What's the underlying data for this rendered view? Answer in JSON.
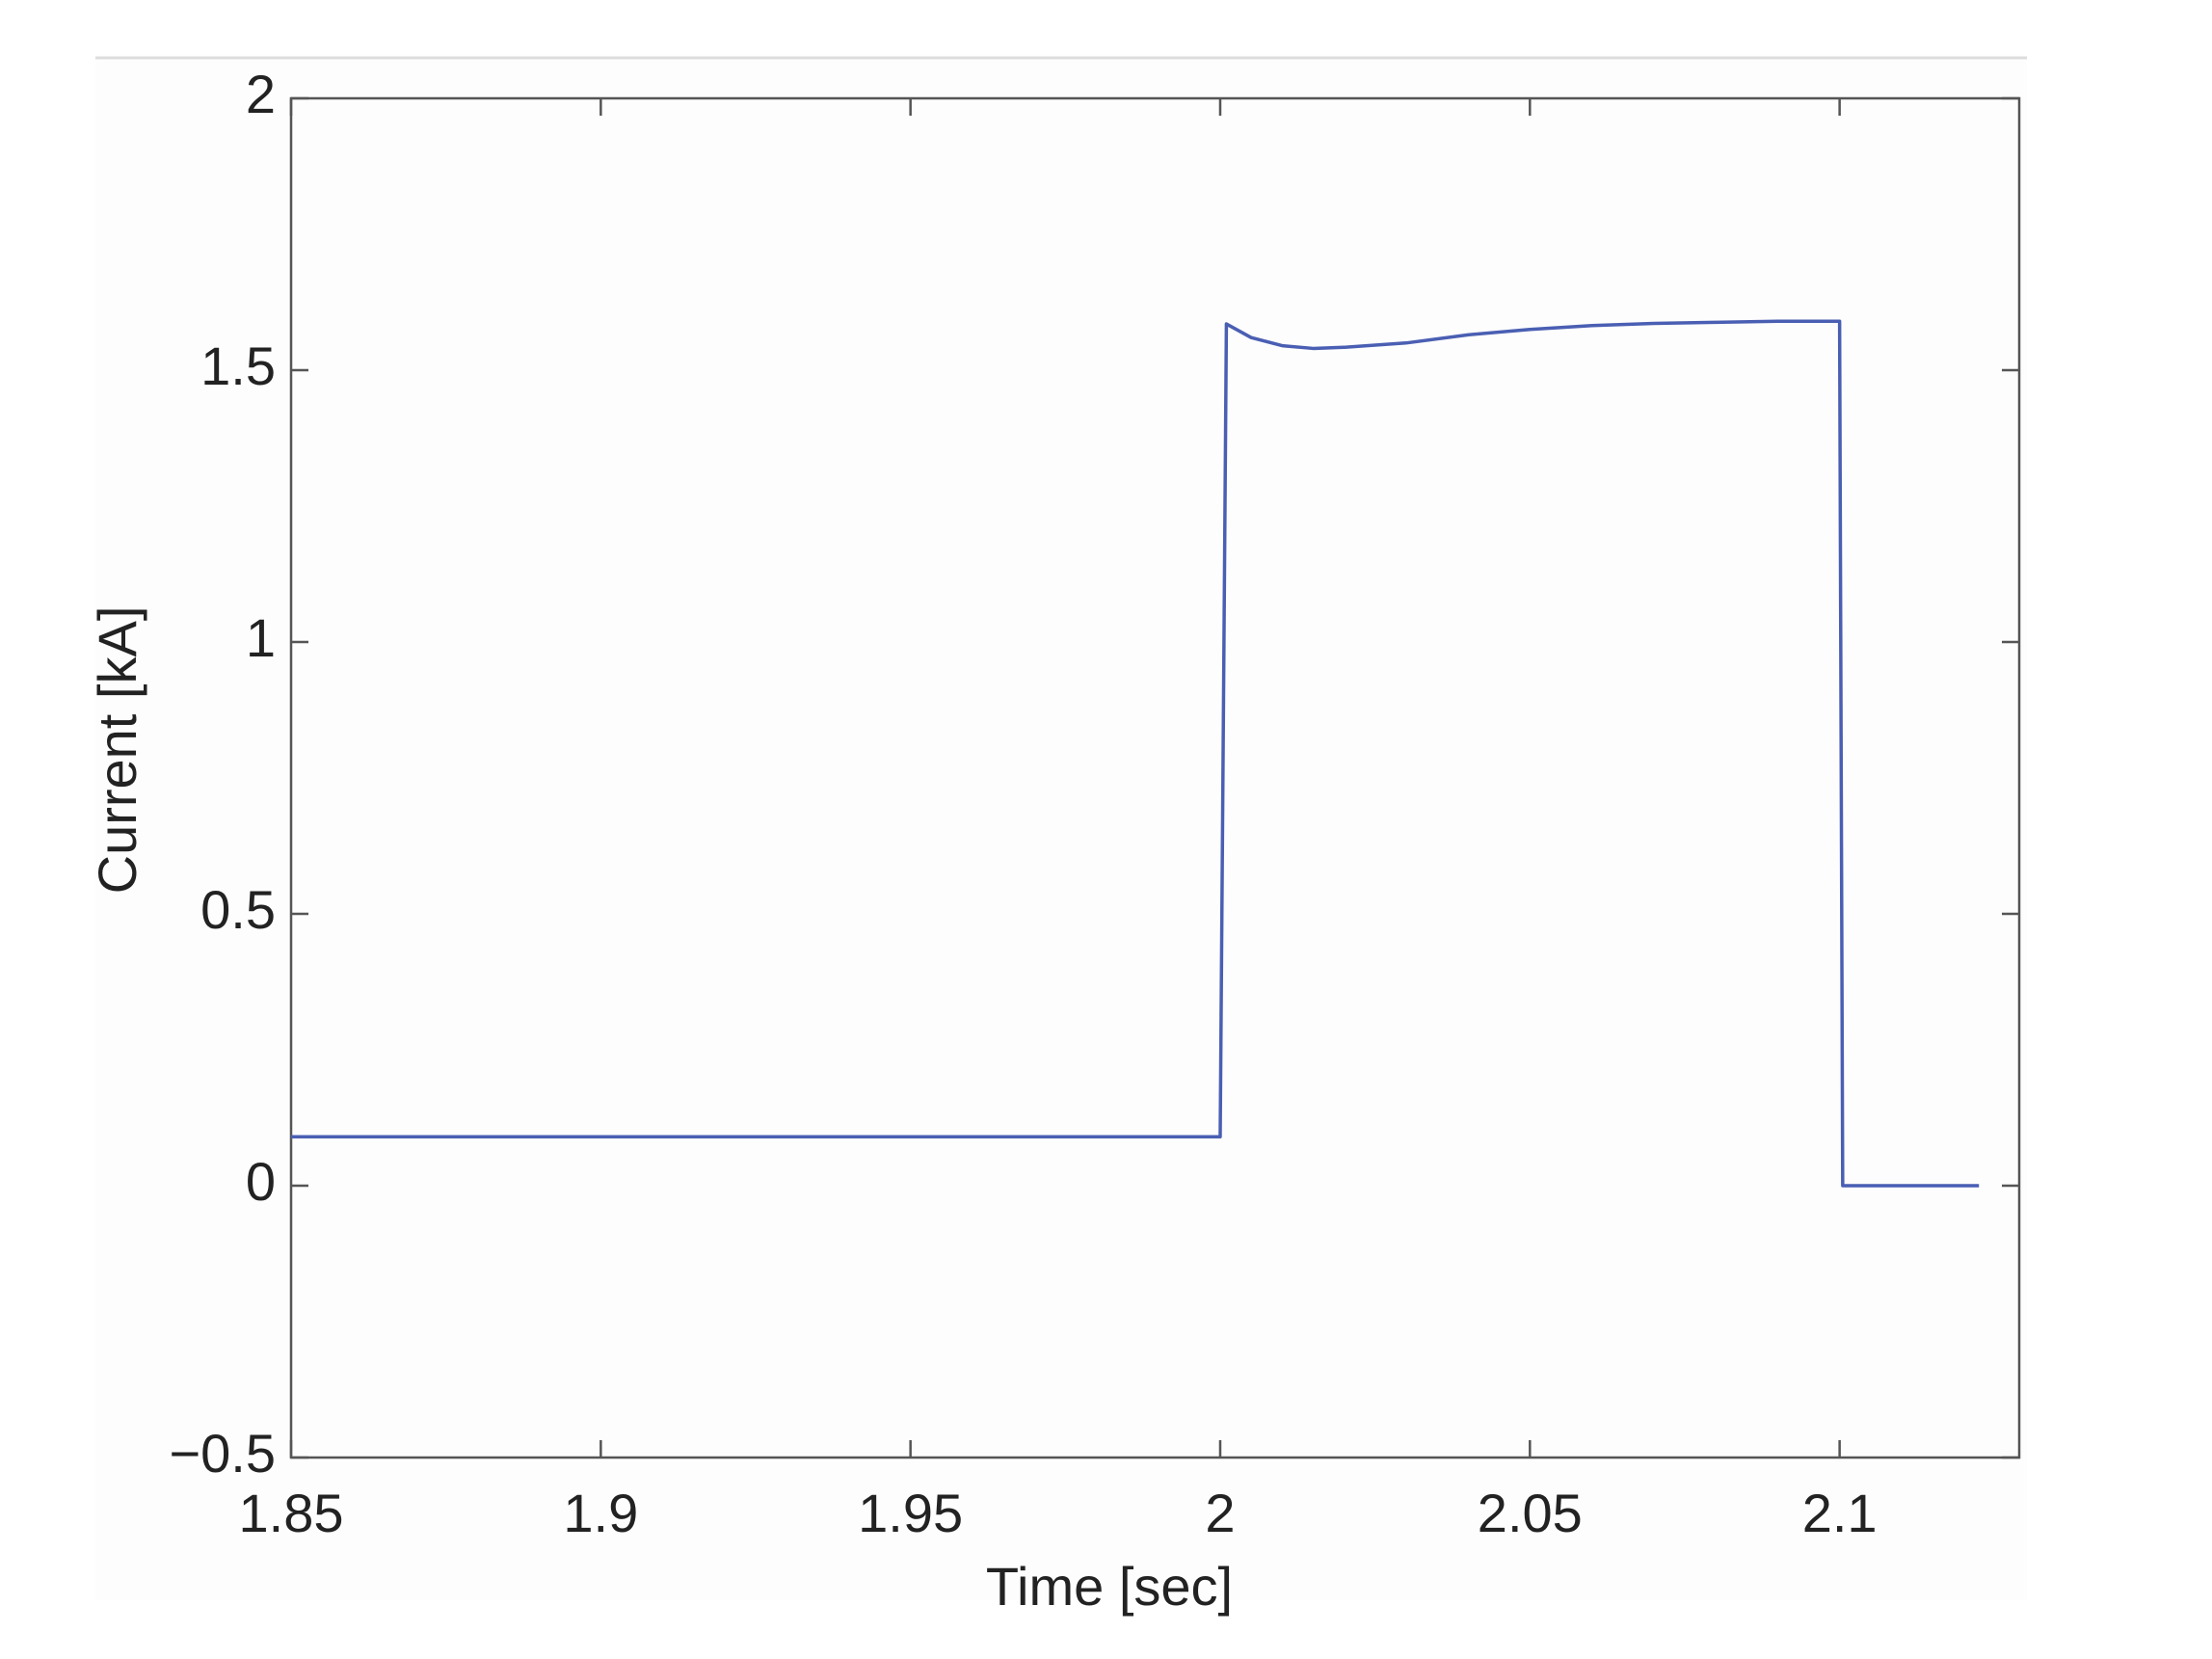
{
  "chart_data": {
    "type": "line",
    "xlabel": "Time [sec]",
    "ylabel": "Current [kA]",
    "color": "#4a5fb3",
    "x": [
      1.85,
      2.0,
      2.001,
      2.005,
      2.01,
      2.015,
      2.02,
      2.03,
      2.04,
      2.05,
      2.06,
      2.07,
      2.08,
      2.09,
      2.1,
      2.1005,
      2.1225
    ],
    "values": [
      0.09,
      0.09,
      1.585,
      1.56,
      1.545,
      1.54,
      1.542,
      1.55,
      1.565,
      1.575,
      1.582,
      1.586,
      1.588,
      1.59,
      1.59,
      0,
      0
    ],
    "xlim": [
      1.85,
      2.129
    ],
    "ylim": [
      -0.5,
      2
    ],
    "xticks": [
      1.85,
      1.9,
      1.95,
      2,
      2.05,
      2.1
    ],
    "yticks": [
      {
        "value": -0.5,
        "label": "−0.5"
      },
      0,
      0.5,
      1,
      1.5,
      2
    ],
    "grid": false
  }
}
